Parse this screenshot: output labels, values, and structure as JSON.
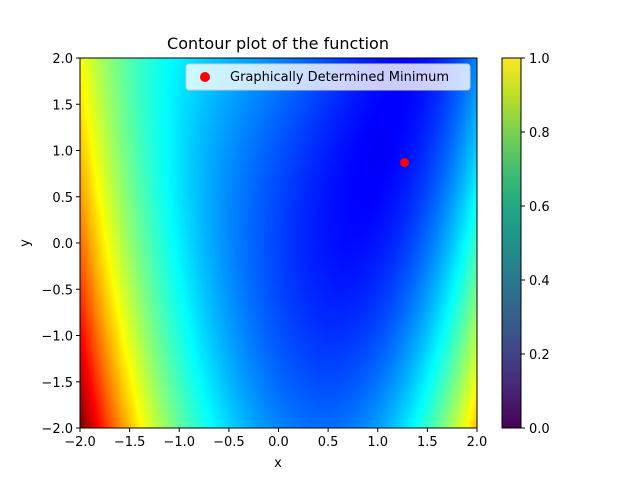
{
  "chart_data": {
    "type": "heatmap",
    "title": "Contour plot of the function",
    "xlabel": "x",
    "ylabel": "y",
    "xlim": [
      -2.0,
      2.0
    ],
    "ylim": [
      -2.0,
      2.0
    ],
    "xticks": [
      "−2.0",
      "−1.5",
      "−1.0",
      "−0.5",
      "0.0",
      "0.5",
      "1.0",
      "1.5",
      "2.0"
    ],
    "yticks": [
      "−2.0",
      "−1.5",
      "−1.0",
      "−0.5",
      "0.0",
      "0.5",
      "1.0",
      "1.5",
      "2.0"
    ],
    "xtick_values": [
      -2.0,
      -1.5,
      -1.0,
      -0.5,
      0.0,
      0.5,
      1.0,
      1.5,
      2.0
    ],
    "ytick_values": [
      -2.0,
      -1.5,
      -1.0,
      -0.5,
      0.0,
      0.5,
      1.0,
      1.5,
      2.0
    ],
    "colormap": "jet",
    "colorbar": {
      "colormap": "viridis",
      "range": [
        0.0,
        1.0
      ],
      "ticks": [
        "0.0",
        "0.2",
        "0.4",
        "0.6",
        "0.8",
        "1.0"
      ],
      "tick_values": [
        0.0,
        0.2,
        0.4,
        0.6,
        0.8,
        1.0
      ]
    },
    "series": [
      {
        "name": "Graphically Determined Minimum",
        "type": "scatter",
        "color": "#ff0000",
        "x": [
          1.27
        ],
        "y": [
          0.87
        ]
      }
    ],
    "legend": {
      "placement": "top-right",
      "entries": [
        "Graphically Determined Minimum"
      ]
    },
    "grid": false
  }
}
